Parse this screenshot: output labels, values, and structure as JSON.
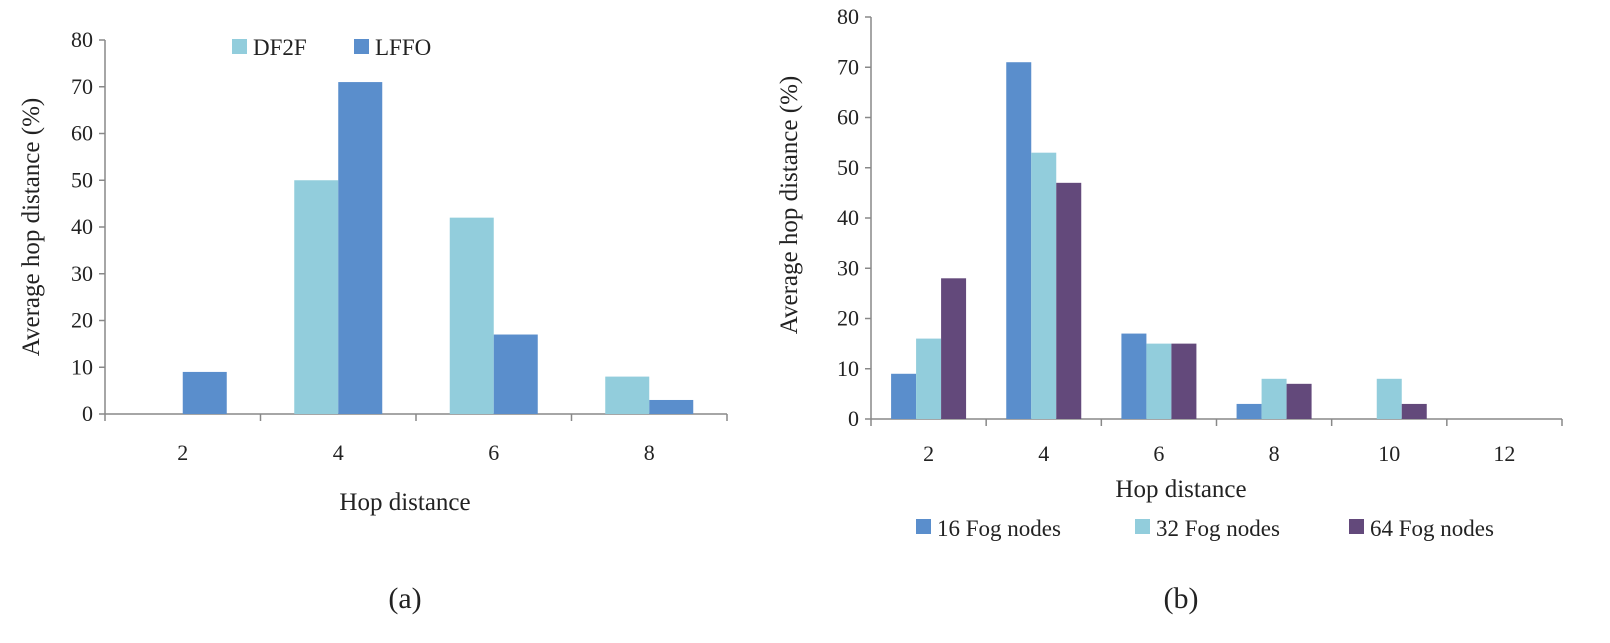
{
  "chart_data": [
    {
      "type": "bar",
      "caption": "(a)",
      "categories": [
        "2",
        "4",
        "6",
        "8"
      ],
      "series": [
        {
          "name": "DF2F",
          "color": "#92cddc",
          "values": [
            0,
            50,
            42,
            8
          ]
        },
        {
          "name": "LFFO",
          "color": "#5a8ecc",
          "values": [
            9,
            71,
            17,
            3
          ]
        }
      ],
      "xlabel": "Hop distance",
      "ylabel": "Average hop  distance (%)",
      "ylim": [
        0,
        80
      ],
      "yticks": [
        "0",
        "10",
        "20",
        "30",
        "40",
        "50",
        "60",
        "70",
        "80"
      ],
      "legend_position": "top-center"
    },
    {
      "type": "bar",
      "caption": "(b)",
      "categories": [
        "2",
        "4",
        "6",
        "8",
        "10",
        "12"
      ],
      "series": [
        {
          "name": "16 Fog nodes",
          "color": "#5a8ecc",
          "values": [
            9,
            71,
            17,
            3,
            0,
            0
          ]
        },
        {
          "name": "32 Fog nodes",
          "color": "#92cddc",
          "values": [
            16,
            53,
            15,
            8,
            8,
            0
          ]
        },
        {
          "name": "64 Fog nodes",
          "color": "#63497b",
          "values": [
            28,
            47,
            15,
            7,
            3,
            0
          ]
        }
      ],
      "xlabel": "Hop distance",
      "ylabel": "Average hop distance (%)",
      "ylim": [
        0,
        80
      ],
      "yticks": [
        "0",
        "10",
        "20",
        "30",
        "40",
        "50",
        "60",
        "70",
        "80"
      ],
      "legend_position": "bottom"
    }
  ]
}
